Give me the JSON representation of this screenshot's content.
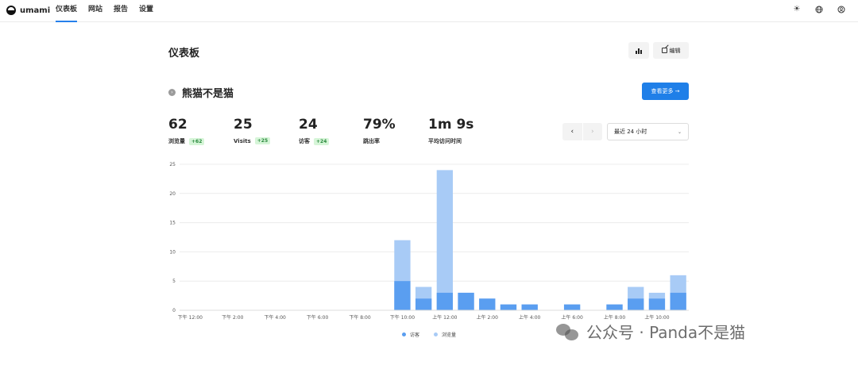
{
  "app": {
    "name": "umami"
  },
  "nav": [
    {
      "label": "仪表板",
      "active": true
    },
    {
      "label": "网站",
      "active": false
    },
    {
      "label": "报告",
      "active": false
    },
    {
      "label": "设置",
      "active": false
    }
  ],
  "top_icons": [
    "sun-icon",
    "globe-icon",
    "user-icon"
  ],
  "page": {
    "title": "仪表板",
    "edit_label": "编辑"
  },
  "site": {
    "name": "熊猫不是猫",
    "view_more_label": "查看更多 →"
  },
  "metrics": [
    {
      "value": "62",
      "label": "浏览量",
      "change": "+62"
    },
    {
      "value": "25",
      "label": "Visits",
      "change": "+25"
    },
    {
      "value": "24",
      "label": "访客",
      "change": "+24"
    },
    {
      "value": "79%",
      "label": "跳出率",
      "change": ""
    },
    {
      "value": "1m 9s",
      "label": "平均访问时间",
      "change": ""
    }
  ],
  "pager": {
    "prev": "‹",
    "next": "›"
  },
  "range": {
    "selected": "最近 24 小时"
  },
  "colors": {
    "accent": "#1f7fe8",
    "visitors": "#5a9ef0",
    "pageviews": "#a8cbf6",
    "badge_bg": "#d6f5d8",
    "badge_fg": "#2b8a3e"
  },
  "chart_data": {
    "type": "bar",
    "stacked": true,
    "x_ticks": [
      "下午 12:00",
      "下午 2:00",
      "下午 4:00",
      "下午 6:00",
      "下午 8:00",
      "下午 10:00",
      "上午 12:00",
      "上午 2:00",
      "上午 4:00",
      "上午 6:00",
      "上午 8:00",
      "上午 10:00"
    ],
    "slots": 24,
    "series": [
      {
        "name": "访客",
        "values": [
          0,
          0,
          0,
          0,
          0,
          0,
          0,
          0,
          0,
          0,
          5,
          2,
          3,
          3,
          2,
          1,
          1,
          0,
          1,
          0,
          1,
          2,
          2,
          3
        ]
      },
      {
        "name": "浏览量",
        "values": [
          0,
          0,
          0,
          0,
          0,
          0,
          0,
          0,
          0,
          0,
          12,
          4,
          24,
          3,
          2,
          1,
          1,
          0,
          1,
          0,
          1,
          4,
          3,
          6
        ]
      }
    ],
    "ylim": [
      0,
      25
    ],
    "y_ticks": [
      0,
      5,
      10,
      15,
      20,
      25
    ],
    "grid": true,
    "legend": "bottom-center"
  },
  "watermark": {
    "text": "公众号 · Panda不是猫"
  }
}
